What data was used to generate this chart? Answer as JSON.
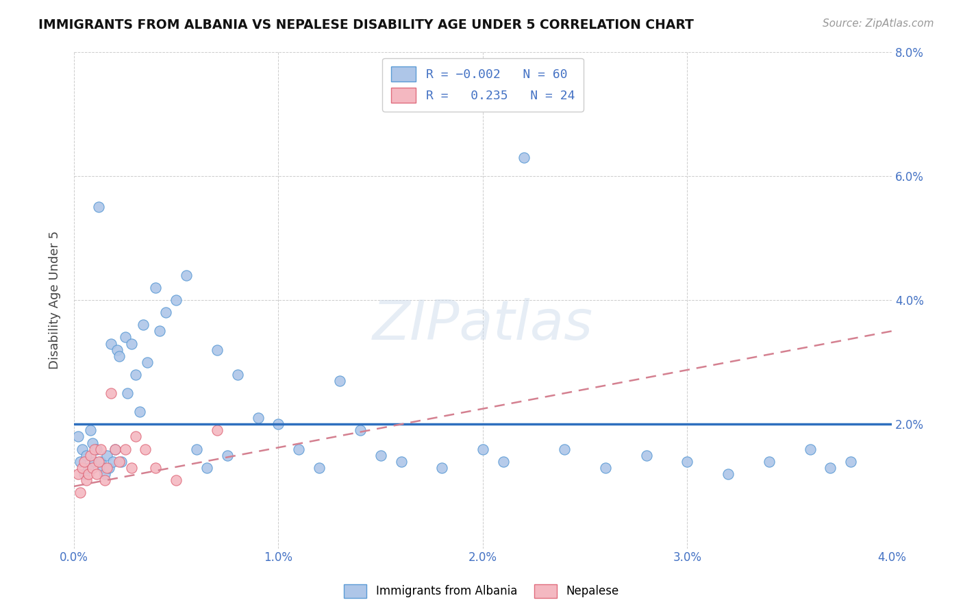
{
  "title": "IMMIGRANTS FROM ALBANIA VS NEPALESE DISABILITY AGE UNDER 5 CORRELATION CHART",
  "source": "Source: ZipAtlas.com",
  "ylabel": "Disability Age Under 5",
  "xlim": [
    0.0,
    0.04
  ],
  "ylim": [
    0.0,
    0.08
  ],
  "xticks": [
    0.0,
    0.01,
    0.02,
    0.03,
    0.04
  ],
  "yticks": [
    0.0,
    0.02,
    0.04,
    0.06,
    0.08
  ],
  "xtick_labels": [
    "0.0%",
    "1.0%",
    "2.0%",
    "3.0%",
    "4.0%"
  ],
  "ytick_labels_right": [
    "",
    "2.0%",
    "4.0%",
    "6.0%",
    "8.0%"
  ],
  "albania_color": "#aec6e8",
  "albania_edge": "#5b9bd5",
  "nepalese_color": "#f4b8c1",
  "nepalese_edge": "#e06c7d",
  "trend_albania_color": "#2e6fbe",
  "trend_nepalese_color": "#d48090",
  "background_color": "#ffffff",
  "grid_color": "#cccccc",
  "albania_x": [
    0.0002,
    0.0003,
    0.0004,
    0.0005,
    0.0006,
    0.0007,
    0.0008,
    0.0009,
    0.001,
    0.0011,
    0.0012,
    0.0013,
    0.0014,
    0.0015,
    0.0016,
    0.0017,
    0.0018,
    0.0019,
    0.002,
    0.0021,
    0.0022,
    0.0023,
    0.0025,
    0.0026,
    0.0028,
    0.003,
    0.0032,
    0.0034,
    0.0036,
    0.004,
    0.0042,
    0.0045,
    0.005,
    0.0055,
    0.006,
    0.0065,
    0.007,
    0.0075,
    0.008,
    0.009,
    0.01,
    0.011,
    0.012,
    0.013,
    0.014,
    0.015,
    0.016,
    0.018,
    0.02,
    0.021,
    0.022,
    0.024,
    0.026,
    0.028,
    0.03,
    0.032,
    0.034,
    0.036,
    0.037,
    0.038
  ],
  "albania_y": [
    0.018,
    0.014,
    0.016,
    0.012,
    0.015,
    0.013,
    0.019,
    0.017,
    0.014,
    0.016,
    0.055,
    0.014,
    0.013,
    0.012,
    0.015,
    0.013,
    0.033,
    0.014,
    0.016,
    0.032,
    0.031,
    0.014,
    0.034,
    0.025,
    0.033,
    0.028,
    0.022,
    0.036,
    0.03,
    0.042,
    0.035,
    0.038,
    0.04,
    0.044,
    0.016,
    0.013,
    0.032,
    0.015,
    0.028,
    0.021,
    0.02,
    0.016,
    0.013,
    0.027,
    0.019,
    0.015,
    0.014,
    0.013,
    0.016,
    0.014,
    0.063,
    0.016,
    0.013,
    0.015,
    0.014,
    0.012,
    0.014,
    0.016,
    0.013,
    0.014
  ],
  "nepalese_x": [
    0.0002,
    0.0003,
    0.0004,
    0.0005,
    0.0006,
    0.0007,
    0.0008,
    0.0009,
    0.001,
    0.0011,
    0.0012,
    0.0013,
    0.0015,
    0.0016,
    0.0018,
    0.002,
    0.0022,
    0.0025,
    0.0028,
    0.003,
    0.0035,
    0.004,
    0.005,
    0.007
  ],
  "nepalese_y": [
    0.012,
    0.009,
    0.013,
    0.014,
    0.011,
    0.012,
    0.015,
    0.013,
    0.016,
    0.012,
    0.014,
    0.016,
    0.011,
    0.013,
    0.025,
    0.016,
    0.014,
    0.016,
    0.013,
    0.018,
    0.016,
    0.013,
    0.011,
    0.019
  ],
  "alb_trend_x": [
    0.0,
    0.04
  ],
  "alb_trend_y": [
    0.02,
    0.02
  ],
  "nep_trend_x": [
    0.0,
    0.04
  ],
  "nep_trend_y": [
    0.01,
    0.035
  ]
}
